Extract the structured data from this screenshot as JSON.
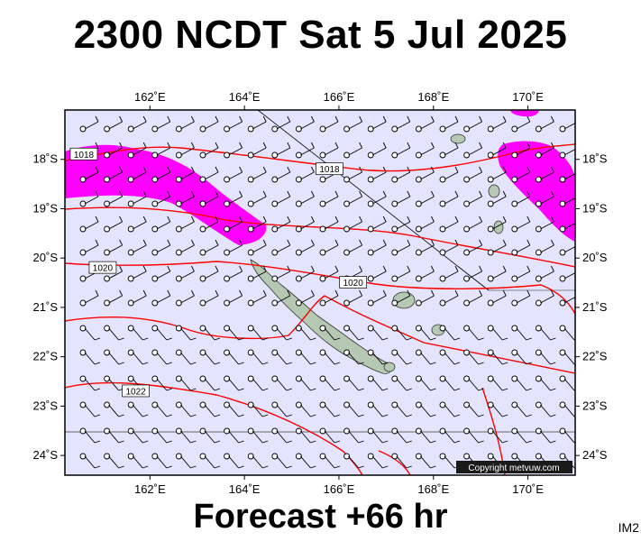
{
  "header": {
    "title": "2300 NCDT Sat 5 Jul 2025"
  },
  "footer": {
    "forecast": "Forecast +66 hr",
    "code": "IM2"
  },
  "copyright": "Copyright metvuw.com",
  "map": {
    "region": {
      "lon_min": 160.2,
      "lon_max": 171.0,
      "lat_min": -24.4,
      "lat_max": -17.0
    },
    "colors": {
      "ocean": "#e4e4ff",
      "land": "#b5c9b2",
      "isobar": "#ff0000",
      "wind_highlight": "#ff00ff",
      "barb": "#000000"
    },
    "lon_ticks": [
      {
        "value": 162,
        "label": "162˚E"
      },
      {
        "value": 164,
        "label": "164˚E"
      },
      {
        "value": 166,
        "label": "166˚E"
      },
      {
        "value": 168,
        "label": "168˚E"
      },
      {
        "value": 170,
        "label": "170˚E"
      }
    ],
    "lat_ticks": [
      {
        "value": -18,
        "label": "18˚S"
      },
      {
        "value": -19,
        "label": "19˚S"
      },
      {
        "value": -20,
        "label": "20˚S"
      },
      {
        "value": -21,
        "label": "21˚S"
      },
      {
        "value": -22,
        "label": "22˚S"
      },
      {
        "value": -23,
        "label": "23˚S"
      },
      {
        "value": -24,
        "label": "24˚S"
      }
    ],
    "isobar_labels": [
      {
        "text": "1018",
        "lon": 160.6,
        "lat": -17.9
      },
      {
        "text": "1018",
        "lon": 165.8,
        "lat": -18.2
      },
      {
        "text": "1020",
        "lon": 161.0,
        "lat": -20.2
      },
      {
        "text": "1020",
        "lon": 166.3,
        "lat": -20.5
      },
      {
        "text": "1022",
        "lon": 161.7,
        "lat": -22.7
      }
    ]
  }
}
